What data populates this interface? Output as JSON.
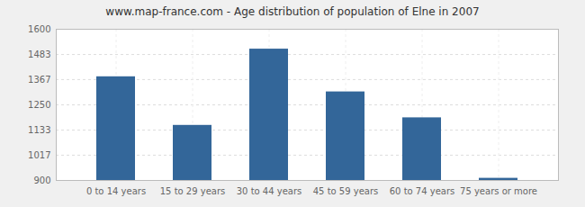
{
  "chart_data": {
    "type": "bar",
    "title": "www.map-france.com - Age distribution of population of Elne in 2007",
    "categories": [
      "0 to 14 years",
      "15 to 29 years",
      "30 to 44 years",
      "45 to 59 years",
      "60 to 74 years",
      "75 years or more"
    ],
    "values": [
      1380,
      1155,
      1508,
      1310,
      1190,
      910
    ],
    "color": "#336699",
    "ylim": [
      900,
      1600
    ],
    "yticks": [
      900,
      1017,
      1133,
      1250,
      1367,
      1483,
      1600
    ],
    "grid": true
  }
}
